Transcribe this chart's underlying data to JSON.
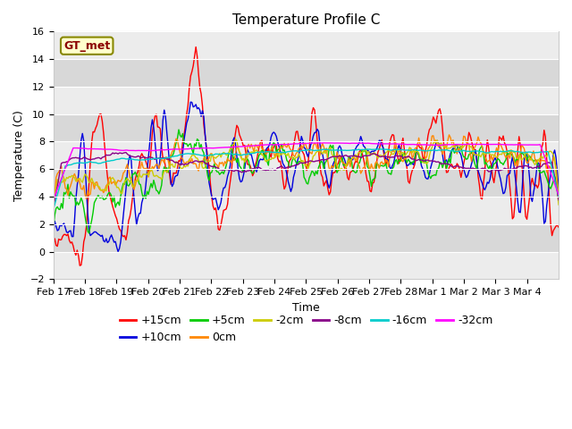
{
  "title": "Temperature Profile C",
  "xlabel": "Time",
  "ylabel": "Temperature (C)",
  "ylim": [
    -2,
    16
  ],
  "yticks": [
    -2,
    0,
    2,
    4,
    6,
    8,
    10,
    12,
    14,
    16
  ],
  "xtick_labels": [
    "Feb 17",
    "Feb 18",
    "Feb 19",
    "Feb 20",
    "Feb 21",
    "Feb 22",
    "Feb 23",
    "Feb 24",
    "Feb 25",
    "Feb 26",
    "Feb 27",
    "Feb 28",
    "Mar 1",
    "Mar 2",
    "Mar 3",
    "Mar 4"
  ],
  "series": [
    {
      "label": "+15cm",
      "color": "#ff0000"
    },
    {
      "label": "+10cm",
      "color": "#0000dd"
    },
    {
      "label": "+5cm",
      "color": "#00cc00"
    },
    {
      "label": "0cm",
      "color": "#ff8800"
    },
    {
      "label": "-2cm",
      "color": "#cccc00"
    },
    {
      "label": "-8cm",
      "color": "#880088"
    },
    {
      "label": "-16cm",
      "color": "#00cccc"
    },
    {
      "label": "-32cm",
      "color": "#ff00ff"
    }
  ],
  "annotation_text": "GT_met",
  "annotation_color": "#8b0000",
  "annotation_bg": "#ffffcc",
  "annotation_edge": "#888800",
  "background_color": "#ffffff",
  "plot_bg_light": "#ececec",
  "plot_bg_dark": "#d8d8d8",
  "title_fontsize": 11,
  "legend_fontsize": 9,
  "axis_label_fontsize": 9,
  "tick_fontsize": 8
}
